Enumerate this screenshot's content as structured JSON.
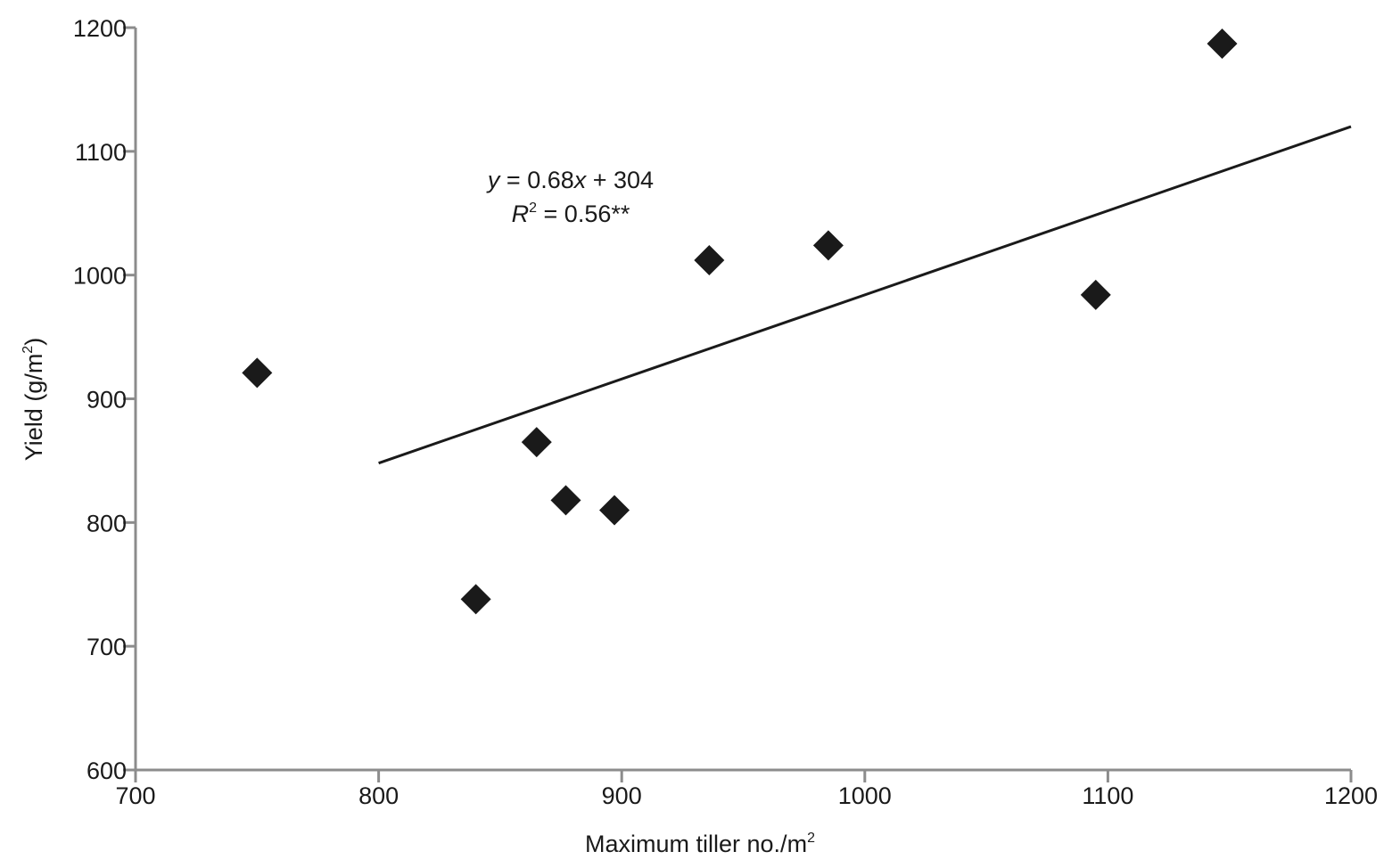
{
  "chart_data": {
    "type": "scatter",
    "xlabel_main": "Maximum tiller no./m",
    "xlabel_sup": "2",
    "ylabel_main": "Yield (g/m",
    "ylabel_sup": "2",
    "ylabel_close": ")",
    "xlim": [
      700,
      1200
    ],
    "ylim": [
      600,
      1200
    ],
    "xticks": [
      700,
      800,
      900,
      1000,
      1100,
      1200
    ],
    "yticks": [
      600,
      700,
      800,
      900,
      1000,
      1100,
      1200
    ],
    "grid": false,
    "series": [
      {
        "marker": "diamond",
        "color": "#1a1a1a",
        "points": [
          {
            "x": 750,
            "y": 921
          },
          {
            "x": 840,
            "y": 738
          },
          {
            "x": 865,
            "y": 865
          },
          {
            "x": 877,
            "y": 818
          },
          {
            "x": 897,
            "y": 810
          },
          {
            "x": 936,
            "y": 1012
          },
          {
            "x": 985,
            "y": 1024
          },
          {
            "x": 1095,
            "y": 984
          },
          {
            "x": 1147,
            "y": 1187
          }
        ]
      }
    ],
    "trendline": {
      "slope": 0.68,
      "intercept": 304,
      "x_range": [
        800,
        1200
      ],
      "color": "#1a1a1a"
    },
    "annotation": {
      "eq_y": "y",
      "eq_rest": " = 0.68",
      "eq_x": "x",
      "eq_end": " + 304",
      "r_R": "R",
      "r_sup": "2",
      "r_rest": " = 0.56**"
    },
    "axis_color": "#8c8c8c"
  }
}
